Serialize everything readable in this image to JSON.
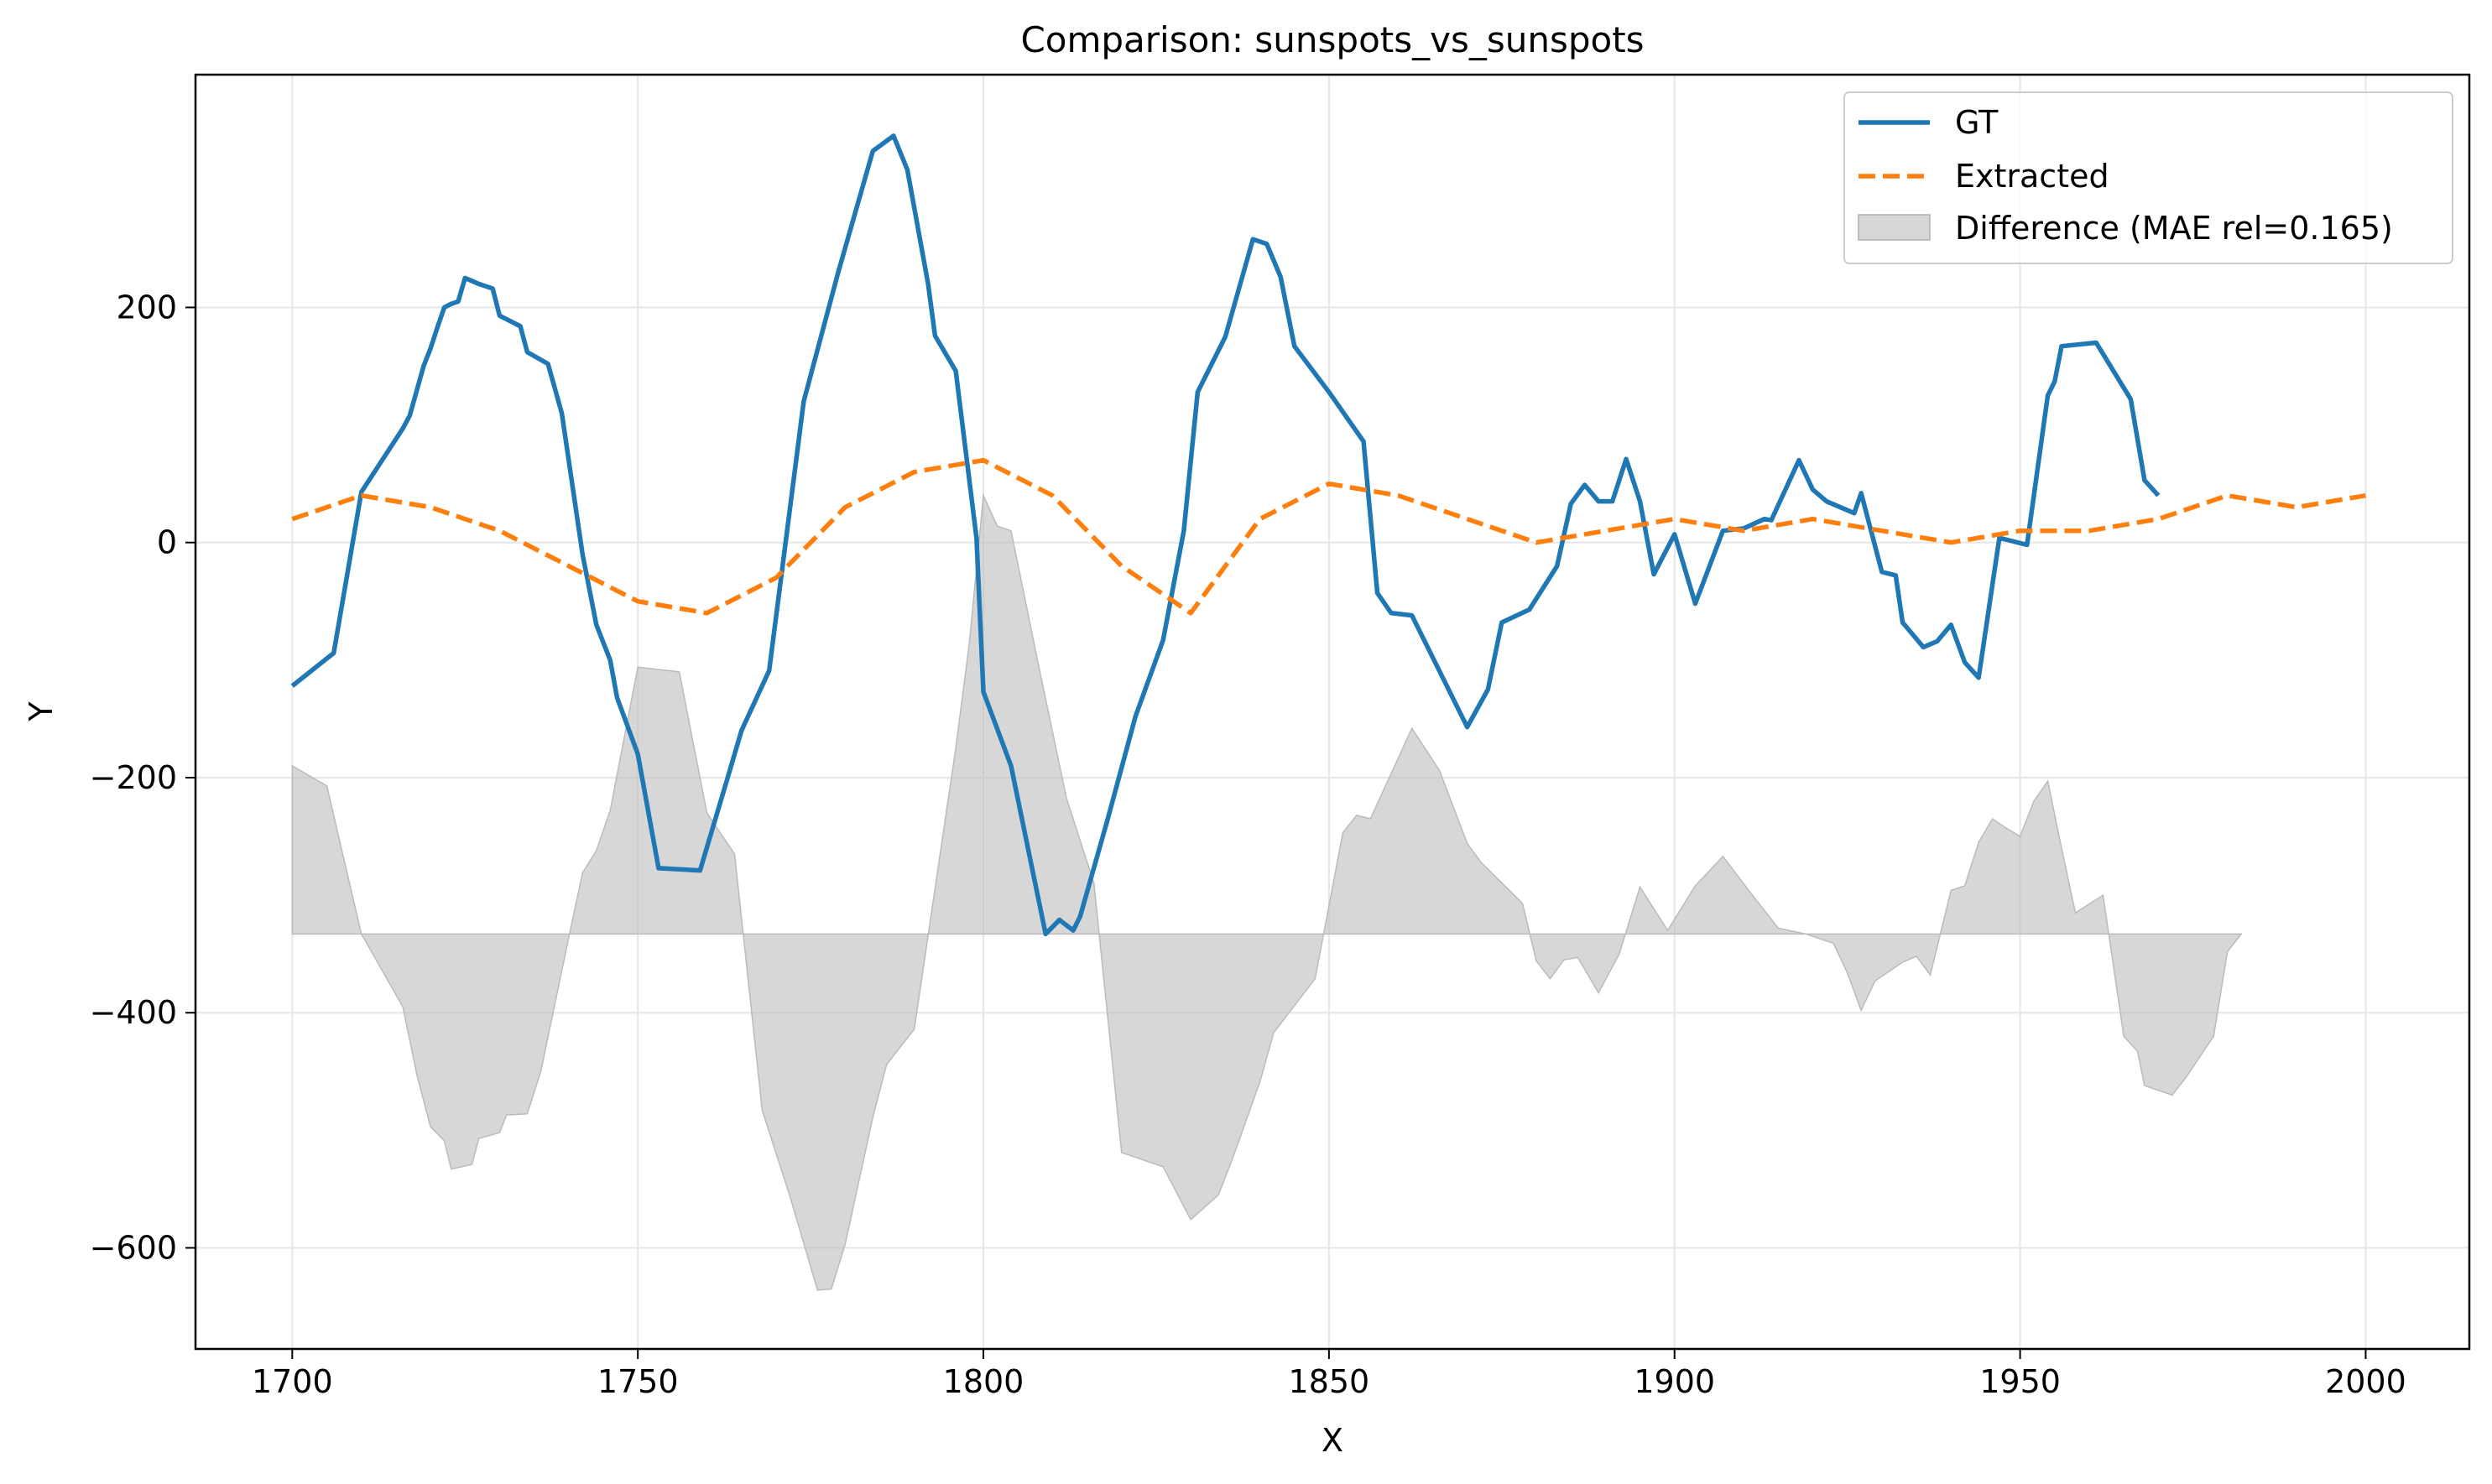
{
  "chart_data": {
    "type": "line",
    "title": "Comparison: sunspots_vs_sunspots",
    "xlabel": "X",
    "ylabel": "Y",
    "xlim": [
      1686,
      2015
    ],
    "ylim": [
      -686,
      398
    ],
    "xticks": [
      1700,
      1750,
      1800,
      1850,
      1900,
      1950,
      2000
    ],
    "xtick_labels": [
      "1700",
      "1750",
      "1800",
      "1850",
      "1900",
      "1950",
      "2000"
    ],
    "yticks": [
      -600,
      -400,
      -200,
      0,
      200
    ],
    "ytick_labels": [
      "−600",
      "−400",
      "−200",
      "0",
      "200"
    ],
    "grid": true,
    "legend_position": "top-right",
    "difference_baseline": -333,
    "series": [
      {
        "name": "GT",
        "color": "#1f77b4",
        "style": "solid",
        "points": [
          [
            1700,
            -122
          ],
          [
            1706,
            -94
          ],
          [
            1710,
            43
          ],
          [
            1716,
            97
          ],
          [
            1717,
            108
          ],
          [
            1719,
            150
          ],
          [
            1720,
            165
          ],
          [
            1721,
            183
          ],
          [
            1722,
            200
          ],
          [
            1723,
            203
          ],
          [
            1724,
            205
          ],
          [
            1725,
            225
          ],
          [
            1727,
            220
          ],
          [
            1729,
            216
          ],
          [
            1730,
            193
          ],
          [
            1733,
            184
          ],
          [
            1734,
            162
          ],
          [
            1737,
            152
          ],
          [
            1739,
            110
          ],
          [
            1742,
            -10
          ],
          [
            1744,
            -70
          ],
          [
            1746,
            -100
          ],
          [
            1747,
            -132
          ],
          [
            1750,
            -180
          ],
          [
            1753,
            -277
          ],
          [
            1759,
            -279
          ],
          [
            1763,
            -200
          ],
          [
            1765,
            -160
          ],
          [
            1769,
            -109
          ],
          [
            1774,
            120
          ],
          [
            1779,
            230
          ],
          [
            1784,
            333
          ],
          [
            1787,
            346
          ],
          [
            1789,
            317
          ],
          [
            1792,
            220
          ],
          [
            1793,
            176
          ],
          [
            1796,
            146
          ],
          [
            1799,
            4
          ],
          [
            1800,
            -127
          ],
          [
            1804,
            -190
          ],
          [
            1809,
            -333
          ],
          [
            1811,
            -321
          ],
          [
            1813,
            -330
          ],
          [
            1814,
            -318
          ],
          [
            1818,
            -235
          ],
          [
            1822,
            -148
          ],
          [
            1826,
            -83
          ],
          [
            1829,
            10
          ],
          [
            1831,
            128
          ],
          [
            1835,
            175
          ],
          [
            1839,
            258
          ],
          [
            1841,
            254
          ],
          [
            1843,
            226
          ],
          [
            1845,
            167
          ],
          [
            1850,
            128
          ],
          [
            1855,
            86
          ],
          [
            1857,
            -43
          ],
          [
            1859,
            -60
          ],
          [
            1862,
            -62
          ],
          [
            1870,
            -157
          ],
          [
            1873,
            -125
          ],
          [
            1875,
            -68
          ],
          [
            1879,
            -57
          ],
          [
            1883,
            -20
          ],
          [
            1885,
            33
          ],
          [
            1887,
            49
          ],
          [
            1889,
            35
          ],
          [
            1891,
            35
          ],
          [
            1893,
            71
          ],
          [
            1895,
            35
          ],
          [
            1897,
            -27
          ],
          [
            1900,
            7
          ],
          [
            1903,
            -52
          ],
          [
            1907,
            10
          ],
          [
            1910,
            12
          ],
          [
            1913,
            20
          ],
          [
            1914,
            19
          ],
          [
            1918,
            70
          ],
          [
            1920,
            45
          ],
          [
            1922,
            35
          ],
          [
            1924,
            30
          ],
          [
            1926,
            25
          ],
          [
            1927,
            42
          ],
          [
            1930,
            -25
          ],
          [
            1932,
            -28
          ],
          [
            1933,
            -68
          ],
          [
            1936,
            -89
          ],
          [
            1938,
            -84
          ],
          [
            1940,
            -70
          ],
          [
            1942,
            -102
          ],
          [
            1944,
            -115
          ],
          [
            1947,
            4
          ],
          [
            1951,
            -2
          ],
          [
            1954,
            125
          ],
          [
            1955,
            137
          ],
          [
            1956,
            167
          ],
          [
            1961,
            170
          ],
          [
            1966,
            122
          ],
          [
            1968,
            53
          ],
          [
            1970,
            40
          ]
        ]
      },
      {
        "name": "Extracted",
        "color": "#ff7f0e",
        "style": "dashed",
        "points": [
          [
            1700,
            20
          ],
          [
            1710,
            40
          ],
          [
            1720,
            30
          ],
          [
            1730,
            10
          ],
          [
            1740,
            -20
          ],
          [
            1750,
            -50
          ],
          [
            1760,
            -60
          ],
          [
            1770,
            -30
          ],
          [
            1780,
            30
          ],
          [
            1790,
            60
          ],
          [
            1800,
            70
          ],
          [
            1810,
            40
          ],
          [
            1820,
            -20
          ],
          [
            1830,
            -60
          ],
          [
            1840,
            20
          ],
          [
            1850,
            50
          ],
          [
            1860,
            40
          ],
          [
            1870,
            20
          ],
          [
            1880,
            0
          ],
          [
            1890,
            10
          ],
          [
            1900,
            20
          ],
          [
            1910,
            10
          ],
          [
            1920,
            20
          ],
          [
            1930,
            10
          ],
          [
            1940,
            0
          ],
          [
            1950,
            10
          ],
          [
            1960,
            10
          ],
          [
            1970,
            20
          ],
          [
            1980,
            40
          ],
          [
            1990,
            30
          ],
          [
            2000,
            40
          ]
        ]
      }
    ],
    "difference": {
      "name": "Difference (MAE rel=0.165)",
      "color": "#bdbdbd",
      "points": [
        [
          1700,
          -190
        ],
        [
          1705,
          -207
        ],
        [
          1710,
          -333
        ],
        [
          1716,
          -395
        ],
        [
          1718,
          -452
        ],
        [
          1720,
          -497
        ],
        [
          1722,
          -509
        ],
        [
          1723,
          -533
        ],
        [
          1726,
          -529
        ],
        [
          1727,
          -507
        ],
        [
          1730,
          -502
        ],
        [
          1731,
          -487
        ],
        [
          1734,
          -486
        ],
        [
          1736,
          -449
        ],
        [
          1740,
          -336
        ],
        [
          1742,
          -281
        ],
        [
          1744,
          -262
        ],
        [
          1746,
          -228
        ],
        [
          1750,
          -106
        ],
        [
          1756,
          -110
        ],
        [
          1760,
          -230
        ],
        [
          1764,
          -265
        ],
        [
          1768,
          -483
        ],
        [
          1772,
          -556
        ],
        [
          1776,
          -636
        ],
        [
          1778,
          -635
        ],
        [
          1780,
          -597
        ],
        [
          1784,
          -489
        ],
        [
          1786,
          -444
        ],
        [
          1790,
          -414
        ],
        [
          1796,
          -175
        ],
        [
          1798,
          -84
        ],
        [
          1800,
          40
        ],
        [
          1802,
          14
        ],
        [
          1804,
          10
        ],
        [
          1808,
          -105
        ],
        [
          1812,
          -217
        ],
        [
          1816,
          -290
        ],
        [
          1820,
          -519
        ],
        [
          1826,
          -531
        ],
        [
          1830,
          -576
        ],
        [
          1834,
          -555
        ],
        [
          1836,
          -525
        ],
        [
          1840,
          -459
        ],
        [
          1842,
          -417
        ],
        [
          1848,
          -371
        ],
        [
          1852,
          -247
        ],
        [
          1854,
          -232
        ],
        [
          1856,
          -235
        ],
        [
          1862,
          -158
        ],
        [
          1866,
          -194
        ],
        [
          1870,
          -256
        ],
        [
          1872,
          -272
        ],
        [
          1878,
          -307
        ],
        [
          1880,
          -356
        ],
        [
          1882,
          -371
        ],
        [
          1884,
          -355
        ],
        [
          1886,
          -353
        ],
        [
          1889,
          -383
        ],
        [
          1892,
          -350
        ],
        [
          1895,
          -293
        ],
        [
          1899,
          -330
        ],
        [
          1903,
          -292
        ],
        [
          1907,
          -267
        ],
        [
          1911,
          -298
        ],
        [
          1915,
          -328
        ],
        [
          1919,
          -333
        ],
        [
          1923,
          -341
        ],
        [
          1925,
          -366
        ],
        [
          1927,
          -398
        ],
        [
          1929,
          -373
        ],
        [
          1933,
          -357
        ],
        [
          1935,
          -352
        ],
        [
          1937,
          -368
        ],
        [
          1940,
          -296
        ],
        [
          1942,
          -292
        ],
        [
          1944,
          -255
        ],
        [
          1946,
          -235
        ],
        [
          1948,
          -243
        ],
        [
          1950,
          -250
        ],
        [
          1952,
          -220
        ],
        [
          1954,
          -203
        ],
        [
          1956,
          -260
        ],
        [
          1958,
          -315
        ],
        [
          1962,
          -300
        ],
        [
          1965,
          -420
        ],
        [
          1967,
          -433
        ],
        [
          1968,
          -462
        ],
        [
          1972,
          -470
        ],
        [
          1974,
          -455
        ],
        [
          1978,
          -420
        ],
        [
          1980,
          -348
        ],
        [
          1982,
          -333
        ]
      ]
    }
  }
}
